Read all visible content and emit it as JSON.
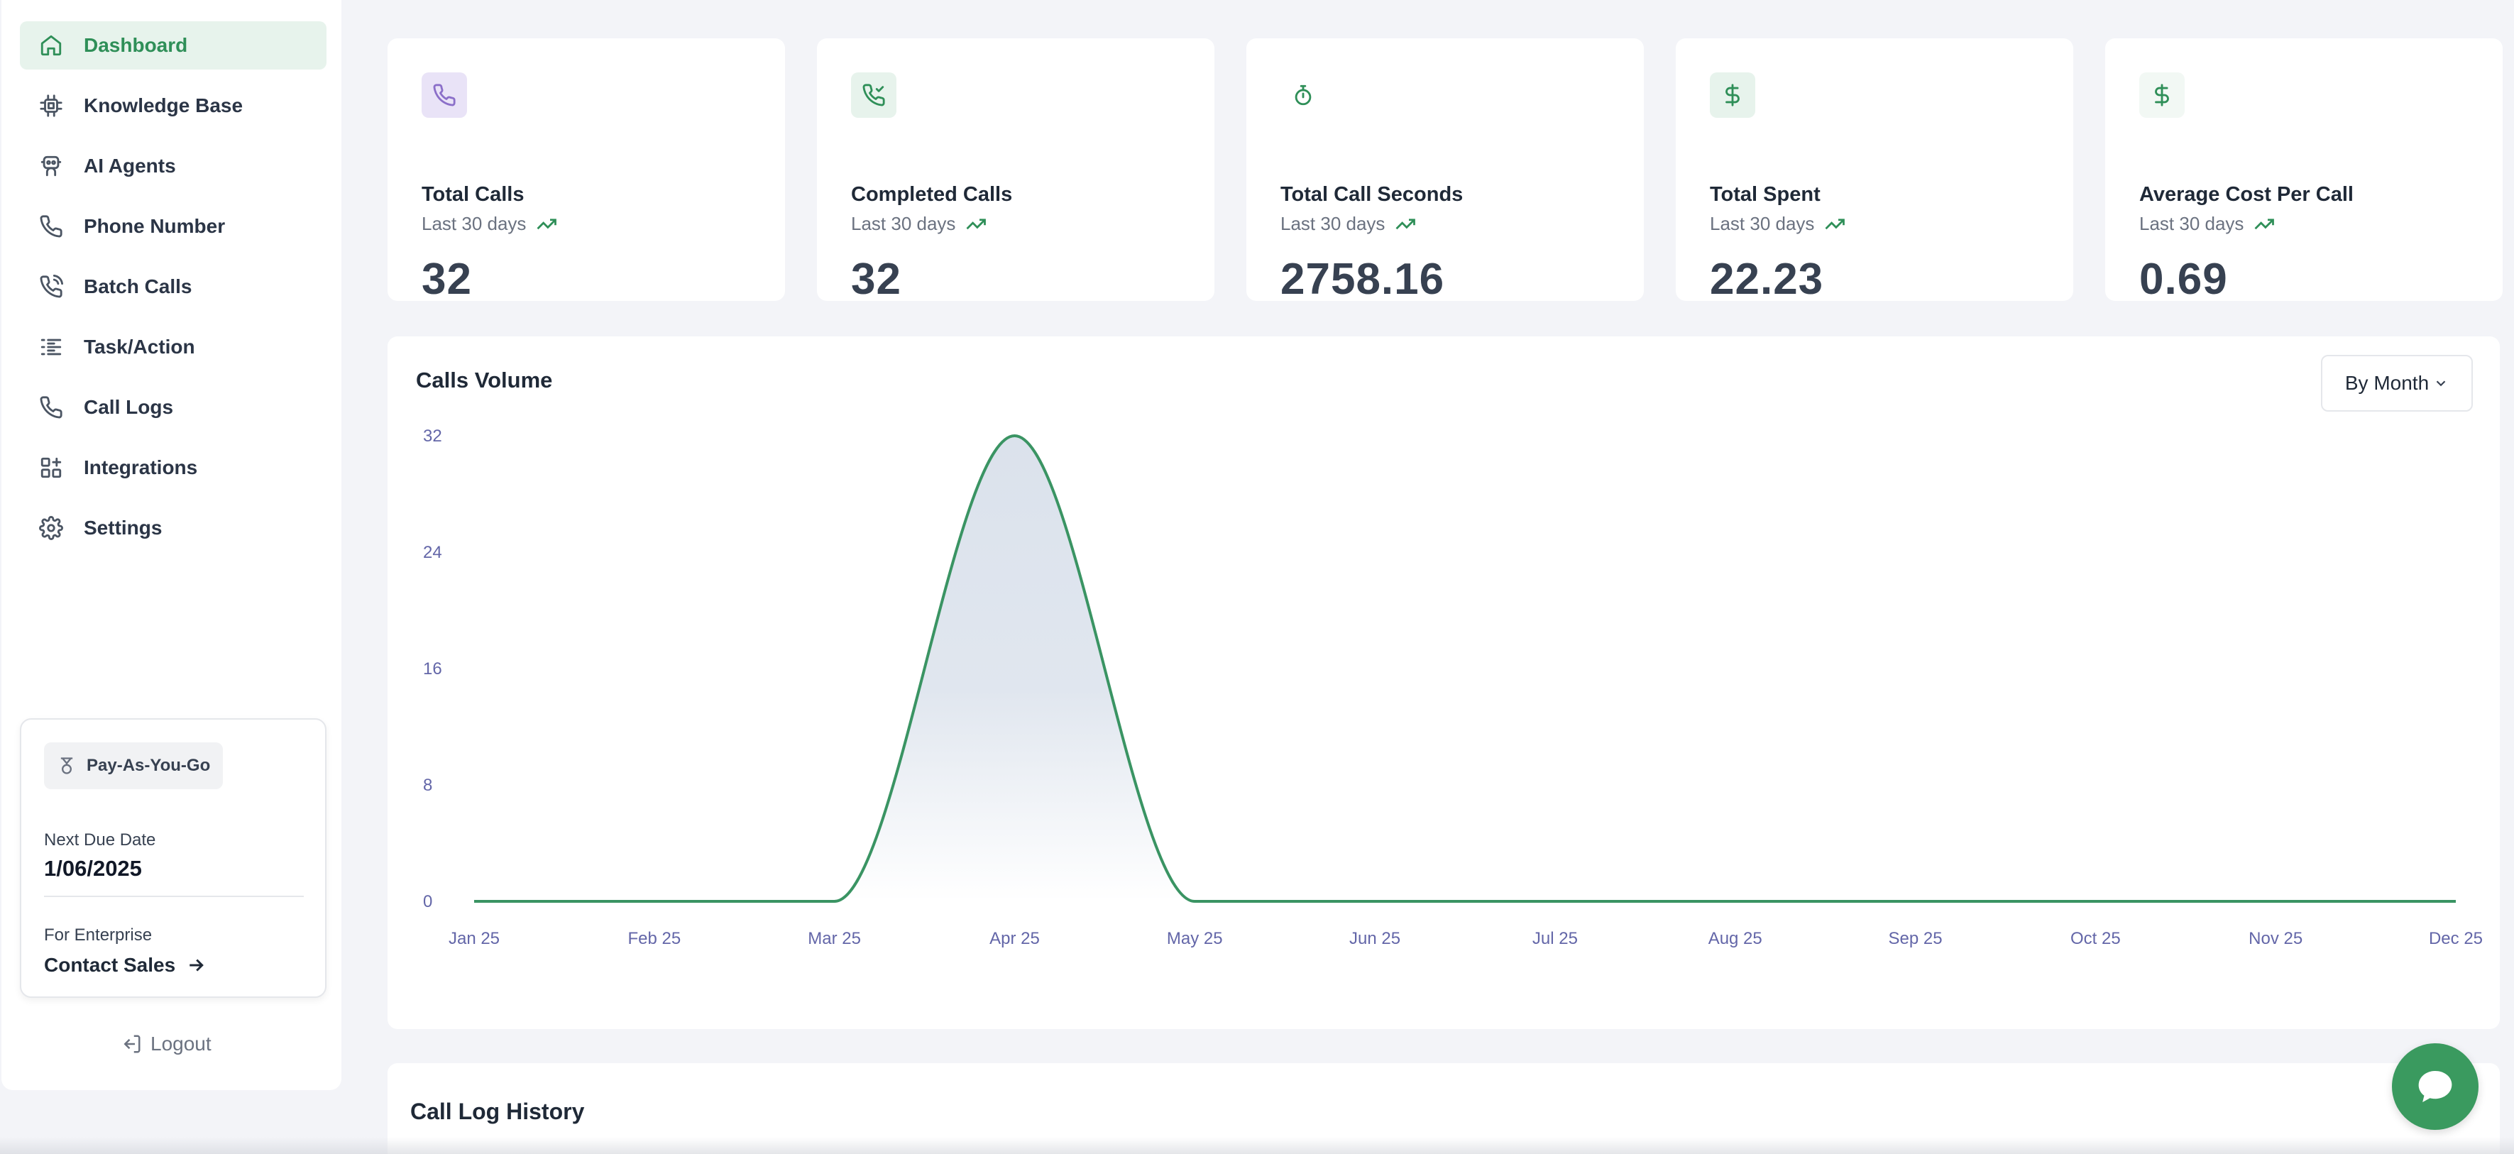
{
  "sidebar": {
    "items": [
      {
        "label": "Dashboard",
        "icon": "home-icon"
      },
      {
        "label": "Knowledge Base",
        "icon": "chip-icon"
      },
      {
        "label": "AI Agents",
        "icon": "robot-icon"
      },
      {
        "label": "Phone Number",
        "icon": "phone-icon"
      },
      {
        "label": "Batch Calls",
        "icon": "phone-call-icon"
      },
      {
        "label": "Task/Action",
        "icon": "list-check-icon"
      },
      {
        "label": "Call Logs",
        "icon": "phone-icon"
      },
      {
        "label": "Integrations",
        "icon": "blocks-icon"
      },
      {
        "label": "Settings",
        "icon": "gear-icon"
      }
    ],
    "plan": {
      "badge": "Pay-As-You-Go",
      "due_label": "Next Due Date",
      "due_value": "1/06/2025",
      "enterprise_label": "For Enterprise",
      "contact_label": "Contact Sales"
    },
    "logout_label": "Logout"
  },
  "stats": [
    {
      "title": "Total Calls",
      "subtitle": "Last 30 days",
      "value": "32",
      "icon_bg": "#e9e3f7",
      "icon_color": "#8b6fc9"
    },
    {
      "title": "Completed Calls",
      "subtitle": "Last 30 days",
      "value": "32",
      "icon_bg": "#e7f3ec",
      "icon_color": "#2f8f58"
    },
    {
      "title": "Total Call Seconds",
      "subtitle": "Last 30 days",
      "value": "2758.16",
      "icon_bg": "#ffffff",
      "icon_color": "#2f8f58"
    },
    {
      "title": "Total Spent",
      "subtitle": "Last 30 days",
      "value": "22.23",
      "icon_bg": "#e7f3ec",
      "icon_color": "#2f8f58"
    },
    {
      "title": "Average Cost Per Call",
      "subtitle": "Last 30 days",
      "value": "0.69",
      "icon_bg": "#f2f8f4",
      "icon_color": "#2f8f58"
    }
  ],
  "chart": {
    "title": "Calls Volume",
    "range_label": "By Month"
  },
  "chart_data": {
    "type": "area",
    "title": "Calls Volume",
    "categories": [
      "Jan 25",
      "Feb 25",
      "Mar 25",
      "Apr 25",
      "May 25",
      "Jun 25",
      "Jul 25",
      "Aug 25",
      "Sep 25",
      "Oct 25",
      "Nov 25",
      "Dec 25"
    ],
    "series": [
      {
        "values": [
          0,
          0,
          0,
          32,
          0,
          0,
          0,
          0,
          0,
          0,
          0,
          0
        ]
      }
    ],
    "yticks": [
      0,
      8,
      16,
      24,
      32
    ],
    "ylim": [
      0,
      32
    ],
    "grid": false,
    "line_color": "#3a9463",
    "fill_color": "#dbe2ec"
  },
  "call_log": {
    "title": "Call Log History"
  }
}
